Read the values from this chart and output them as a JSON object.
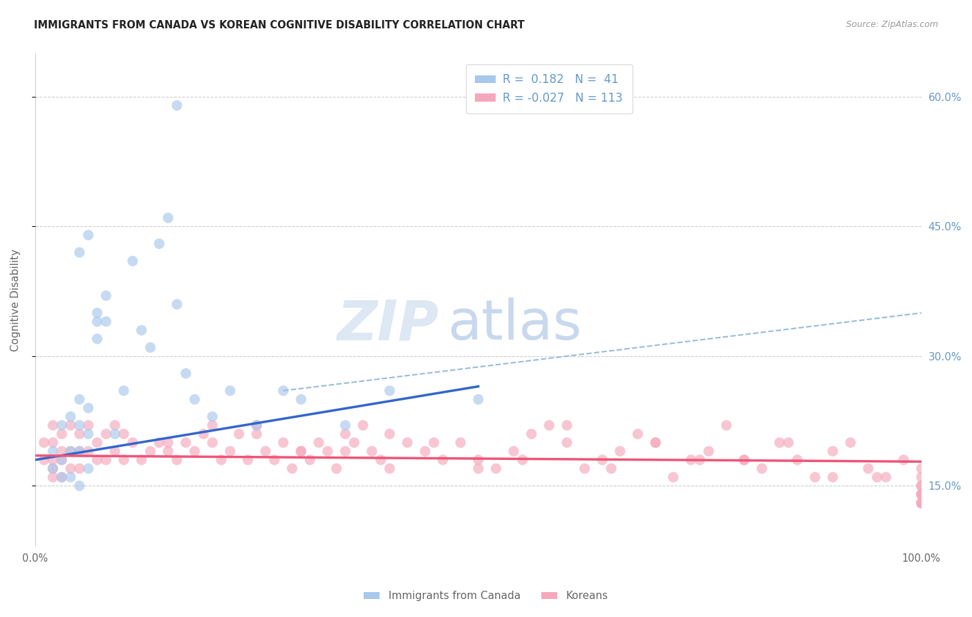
{
  "title": "IMMIGRANTS FROM CANADA VS KOREAN COGNITIVE DISABILITY CORRELATION CHART",
  "source": "Source: ZipAtlas.com",
  "ylabel": "Cognitive Disability",
  "legend1_R": " 0.182",
  "legend1_N": " 41",
  "legend2_R": "-0.027",
  "legend2_N": "113",
  "blue_scatter_color": "#A8C8EC",
  "pink_scatter_color": "#F5A8BC",
  "blue_line_color": "#3366CC",
  "pink_line_color": "#EE5577",
  "dashed_line_color": "#99BBDD",
  "background_color": "#FFFFFF",
  "grid_color": "#CCCCCC",
  "title_color": "#222222",
  "source_color": "#999999",
  "axis_label_color": "#666666",
  "tick_label_color": "#6699CC",
  "watermark_zip_color": "#DDE8F4",
  "watermark_atlas_color": "#C8D8EE",
  "yticks": [
    15,
    30,
    45,
    60
  ],
  "ytick_labels": [
    "15.0%",
    "30.0%",
    "45.0%",
    "60.0%"
  ],
  "xlim": [
    0,
    100
  ],
  "ylim": [
    8,
    65
  ],
  "scatter_size": 120,
  "scatter_alpha": 0.65,
  "canada_x": [
    2,
    2,
    3,
    3,
    3,
    4,
    4,
    4,
    5,
    5,
    5,
    5,
    6,
    6,
    6,
    7,
    7,
    8,
    8,
    9,
    10,
    11,
    12,
    13,
    14,
    15,
    16,
    17,
    18,
    20,
    22,
    25,
    28,
    30,
    35,
    40,
    50,
    5,
    6,
    7,
    16
  ],
  "canada_y": [
    19,
    17,
    22,
    18,
    16,
    23,
    19,
    16,
    25,
    22,
    19,
    15,
    24,
    21,
    17,
    34,
    32,
    37,
    34,
    21,
    26,
    41,
    33,
    31,
    43,
    46,
    36,
    28,
    25,
    23,
    26,
    22,
    26,
    25,
    22,
    26,
    25,
    42,
    44,
    35,
    59
  ],
  "korean_x": [
    1,
    1,
    2,
    2,
    2,
    2,
    2,
    3,
    3,
    3,
    3,
    4,
    4,
    4,
    5,
    5,
    5,
    6,
    6,
    7,
    7,
    8,
    8,
    9,
    9,
    10,
    10,
    11,
    12,
    13,
    14,
    15,
    16,
    17,
    18,
    19,
    20,
    21,
    22,
    23,
    24,
    25,
    26,
    27,
    28,
    29,
    30,
    31,
    32,
    33,
    34,
    35,
    36,
    37,
    38,
    39,
    40,
    42,
    44,
    46,
    48,
    50,
    52,
    54,
    56,
    58,
    60,
    62,
    64,
    66,
    68,
    70,
    72,
    74,
    76,
    78,
    80,
    82,
    84,
    86,
    88,
    90,
    92,
    94,
    96,
    98,
    100,
    55,
    45,
    35,
    25,
    65,
    75,
    85,
    95,
    15,
    20,
    30,
    40,
    50,
    60,
    70,
    80,
    90,
    100,
    100,
    100,
    100,
    100,
    100,
    100,
    100,
    100
  ],
  "korean_y": [
    20,
    18,
    22,
    20,
    18,
    17,
    16,
    21,
    19,
    18,
    16,
    22,
    19,
    17,
    21,
    19,
    17,
    22,
    19,
    20,
    18,
    21,
    18,
    22,
    19,
    21,
    18,
    20,
    18,
    19,
    20,
    19,
    18,
    20,
    19,
    21,
    20,
    18,
    19,
    21,
    18,
    22,
    19,
    18,
    20,
    17,
    19,
    18,
    20,
    19,
    17,
    21,
    20,
    22,
    19,
    18,
    17,
    20,
    19,
    18,
    20,
    18,
    17,
    19,
    21,
    22,
    20,
    17,
    18,
    19,
    21,
    20,
    16,
    18,
    19,
    22,
    18,
    17,
    20,
    18,
    16,
    19,
    20,
    17,
    16,
    18,
    14,
    18,
    20,
    19,
    21,
    17,
    18,
    20,
    16,
    20,
    22,
    19,
    21,
    17,
    22,
    20,
    18,
    16,
    13,
    16,
    14,
    15,
    13,
    17,
    15,
    14,
    13
  ],
  "blue_line_x0": 0,
  "blue_line_y0": 18.0,
  "blue_line_x1": 50,
  "blue_line_y1": 26.5,
  "pink_line_x0": 0,
  "pink_line_y0": 18.5,
  "pink_line_x1": 100,
  "pink_line_y1": 17.8,
  "dash_line_x0": 28,
  "dash_line_y0": 26.0,
  "dash_line_x1": 100,
  "dash_line_y1": 35.0
}
